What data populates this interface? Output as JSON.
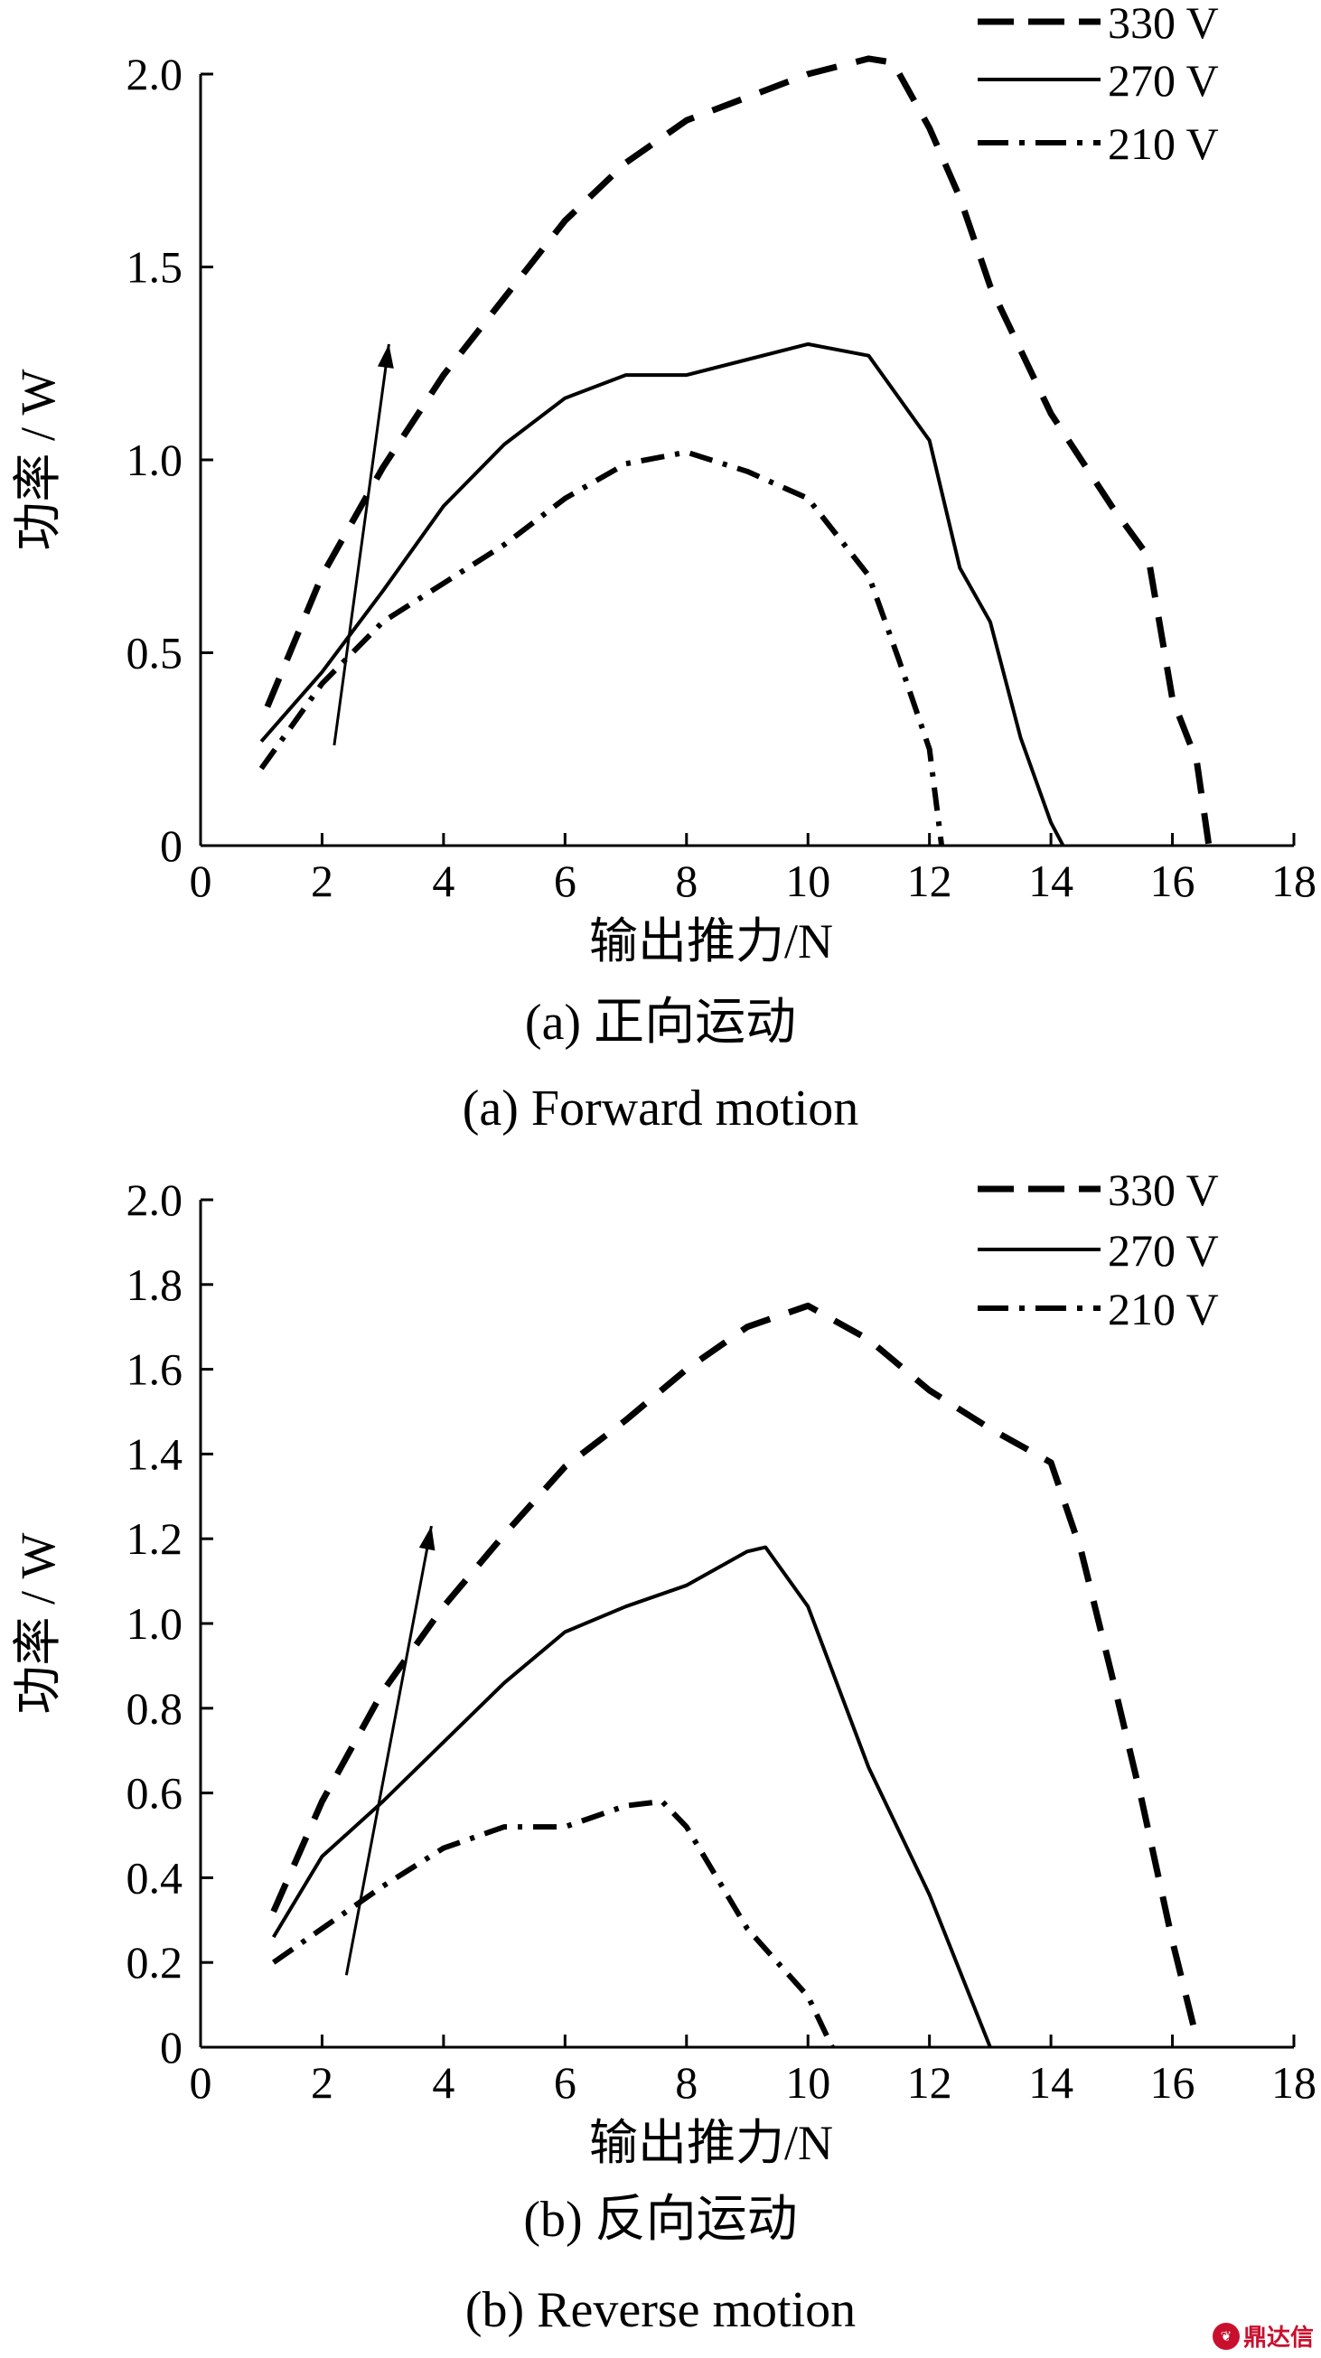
{
  "chart_data": [
    {
      "type": "line",
      "xlabel": "输出推力/N",
      "ylabel": "功率 / W",
      "caption_cn": "(a) 正向运动",
      "caption_en": "(a) Forward motion",
      "xlim": [
        0,
        18
      ],
      "ylim": [
        0,
        2.0
      ],
      "xticks": [
        "0",
        "2",
        "4",
        "6",
        "8",
        "10",
        "12",
        "14",
        "16",
        "18"
      ],
      "yticks": [
        "0",
        "0.5",
        "1.0",
        "1.5",
        "2.0"
      ],
      "legend_position": "top-right",
      "series": [
        {
          "name": "330 V",
          "style": "dashed",
          "x": [
            1.1,
            2.0,
            3.0,
            4.0,
            5.0,
            6.0,
            7.0,
            8.0,
            9.0,
            10.0,
            11.0,
            11.4,
            12.0,
            12.5,
            13.0,
            14.0,
            15.0,
            15.6,
            16.0,
            16.4,
            16.6
          ],
          "y": [
            0.36,
            0.7,
            0.98,
            1.22,
            1.42,
            1.62,
            1.77,
            1.88,
            1.94,
            2.0,
            2.04,
            2.03,
            1.86,
            1.68,
            1.45,
            1.12,
            0.88,
            0.75,
            0.38,
            0.22,
            0.0
          ]
        },
        {
          "name": "270 V",
          "style": "solid",
          "x": [
            1.0,
            2.0,
            3.0,
            4.0,
            5.0,
            6.0,
            7.0,
            8.0,
            9.0,
            10.0,
            11.0,
            12.0,
            12.5,
            13.0,
            13.5,
            14.0,
            14.2
          ],
          "y": [
            0.27,
            0.45,
            0.66,
            0.88,
            1.04,
            1.16,
            1.22,
            1.22,
            1.26,
            1.3,
            1.27,
            1.05,
            0.72,
            0.58,
            0.28,
            0.06,
            0.0
          ]
        },
        {
          "name": "210 V",
          "style": "dashdot",
          "x": [
            1.0,
            2.0,
            3.0,
            4.0,
            5.0,
            6.0,
            7.0,
            8.0,
            9.0,
            10.0,
            11.0,
            11.5,
            12.0,
            12.2
          ],
          "y": [
            0.2,
            0.42,
            0.58,
            0.68,
            0.78,
            0.9,
            0.99,
            1.02,
            0.97,
            0.9,
            0.7,
            0.48,
            0.25,
            0.0
          ]
        }
      ]
    },
    {
      "type": "line",
      "xlabel": "输出推力/N",
      "ylabel": "功率 / W",
      "caption_cn": "(b) 反向运动",
      "caption_en": "(b) Reverse motion",
      "xlim": [
        0,
        18
      ],
      "ylim": [
        0,
        2.0
      ],
      "xticks": [
        "0",
        "2",
        "4",
        "6",
        "8",
        "10",
        "12",
        "14",
        "16",
        "18"
      ],
      "yticks": [
        "0",
        "0.2",
        "0.4",
        "0.6",
        "0.8",
        "1.0",
        "1.2",
        "1.4",
        "1.6",
        "1.8",
        "2.0"
      ],
      "legend_position": "top-right",
      "series": [
        {
          "name": "330 V",
          "style": "dashed",
          "x": [
            1.2,
            2.0,
            3.0,
            4.0,
            5.0,
            6.0,
            7.0,
            8.0,
            9.0,
            10.0,
            11.0,
            12.0,
            13.0,
            14.0,
            14.5,
            15.0,
            15.5,
            16.0,
            16.4
          ],
          "y": [
            0.32,
            0.58,
            0.84,
            1.04,
            1.21,
            1.37,
            1.48,
            1.6,
            1.7,
            1.75,
            1.67,
            1.55,
            1.46,
            1.38,
            1.17,
            0.88,
            0.58,
            0.25,
            0.02
          ]
        },
        {
          "name": "270 V",
          "style": "solid",
          "x": [
            1.2,
            2.0,
            3.0,
            4.0,
            5.0,
            6.0,
            7.0,
            8.0,
            9.0,
            9.3,
            10.0,
            11.0,
            12.0,
            12.5,
            13.0
          ],
          "y": [
            0.26,
            0.45,
            0.58,
            0.72,
            0.86,
            0.98,
            1.04,
            1.09,
            1.17,
            1.18,
            1.04,
            0.66,
            0.36,
            0.18,
            0.0
          ]
        },
        {
          "name": "210 V",
          "style": "dashdot",
          "x": [
            1.2,
            2.0,
            3.0,
            4.0,
            5.0,
            6.0,
            7.0,
            7.6,
            8.0,
            9.0,
            10.0,
            10.4
          ],
          "y": [
            0.2,
            0.28,
            0.38,
            0.47,
            0.52,
            0.52,
            0.57,
            0.58,
            0.52,
            0.28,
            0.12,
            0.0
          ]
        }
      ],
      "arrow": {
        "from": [
          2.4,
          0.17
        ],
        "to": [
          3.8,
          1.23
        ]
      }
    }
  ],
  "forward_arrow": {
    "from": [
      2.2,
      0.26
    ],
    "to": [
      3.1,
      1.3
    ]
  },
  "watermark": "鼎达信"
}
